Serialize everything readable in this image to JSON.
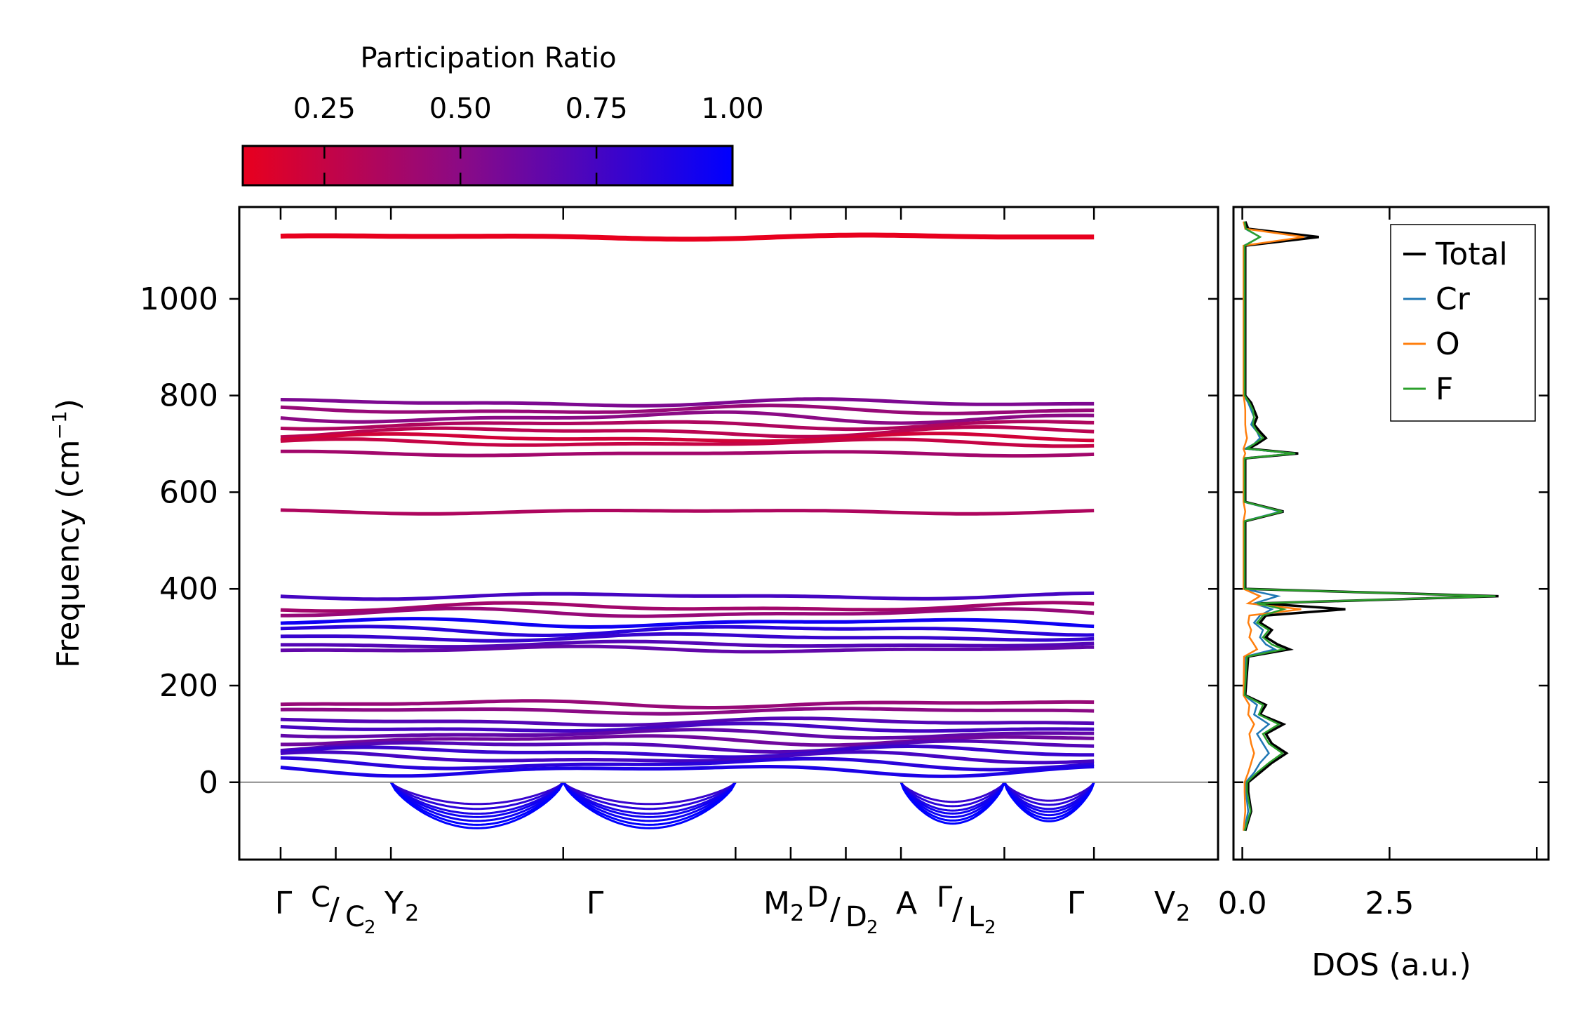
{
  "colors": {
    "low": "#e8001e",
    "mid": "#8a0a86",
    "high": "#0000ff",
    "total": "#000000",
    "cr": "#1f77b4",
    "o": "#ff7f0e",
    "f": "#2ca02c",
    "zero_line": "#888888"
  },
  "colorbar": {
    "label": "Participation Ratio",
    "min": 0.1,
    "max": 1.0,
    "ticks": [
      {
        "value": 0.25,
        "label": "0.25"
      },
      {
        "value": 0.5,
        "label": "0.50"
      },
      {
        "value": 0.75,
        "label": "0.75"
      },
      {
        "value": 1.0,
        "label": "1.00"
      }
    ]
  },
  "chart_data": [
    {
      "type": "line",
      "name": "phonon band structure",
      "ylabel": "Frequency (cm",
      "ylabel_sup": "−1",
      "ylabel_end": ")",
      "ylim": [
        -160,
        1190
      ],
      "yticks": [
        0,
        200,
        400,
        600,
        800,
        1000
      ],
      "xlim": [
        -0.3,
        6.8
      ],
      "kpoints": [
        {
          "x": 0,
          "label": "Γ"
        },
        {
          "x": 0.4,
          "label": "C/C₂"
        },
        {
          "x": 0.8,
          "label": "Y₂"
        },
        {
          "x": 2.05,
          "label": "Γ"
        },
        {
          "x": 3.3,
          "label": "M₂"
        },
        {
          "x": 3.7,
          "label": "D/D₂"
        },
        {
          "x": 4.1,
          "label": "A"
        },
        {
          "x": 4.5,
          "label": "Γ/L₂"
        },
        {
          "x": 5.25,
          "label": "Γ"
        },
        {
          "x": 5.9,
          "label": "V₂"
        }
      ],
      "kpoint_labels": {
        "gamma": "Γ",
        "c": "C",
        "c2": "C",
        "c2_sub": "2",
        "y2": "Y",
        "y2_sub": "2",
        "m2": "M",
        "m2_sub": "2",
        "d": "D",
        "d2": "D",
        "d2_sub": "2",
        "a": "A",
        "l2": "L",
        "l2_sub": "2",
        "v2": "V",
        "v2_sub": "2",
        "slash": "/"
      },
      "bands": [
        {
          "freq": 1128,
          "pr": 0.1,
          "var": 3
        },
        {
          "freq": 785,
          "pr": 0.55,
          "var": 5
        },
        {
          "freq": 770,
          "pr": 0.45,
          "var": 6
        },
        {
          "freq": 755,
          "pr": 0.5,
          "var": 8
        },
        {
          "freq": 740,
          "pr": 0.35,
          "var": 6
        },
        {
          "freq": 725,
          "pr": 0.3,
          "var": 7
        },
        {
          "freq": 712,
          "pr": 0.2,
          "var": 6
        },
        {
          "freq": 702,
          "pr": 0.25,
          "var": 5
        },
        {
          "freq": 680,
          "pr": 0.4,
          "var": 3
        },
        {
          "freq": 560,
          "pr": 0.35,
          "var": 3
        },
        {
          "freq": 385,
          "pr": 0.75,
          "var": 4
        },
        {
          "freq": 362,
          "pr": 0.4,
          "var": 6
        },
        {
          "freq": 350,
          "pr": 0.45,
          "var": 6
        },
        {
          "freq": 330,
          "pr": 0.95,
          "var": 6
        },
        {
          "freq": 315,
          "pr": 0.85,
          "var": 7
        },
        {
          "freq": 300,
          "pr": 0.8,
          "var": 5
        },
        {
          "freq": 285,
          "pr": 0.7,
          "var": 4
        },
        {
          "freq": 275,
          "pr": 0.65,
          "var": 4
        },
        {
          "freq": 162,
          "pr": 0.45,
          "var": 5
        },
        {
          "freq": 148,
          "pr": 0.5,
          "var": 4
        },
        {
          "freq": 125,
          "pr": 0.7,
          "var": 5
        },
        {
          "freq": 112,
          "pr": 0.75,
          "var": 6
        },
        {
          "freq": 100,
          "pr": 0.65,
          "var": 6
        },
        {
          "freq": 88,
          "pr": 0.6,
          "var": 7
        },
        {
          "freq": 75,
          "pr": 0.7,
          "var": 8
        },
        {
          "freq": 62,
          "pr": 0.8,
          "var": 8
        },
        {
          "freq": 50,
          "pr": 0.75,
          "var": 8
        },
        {
          "freq": 38,
          "pr": 0.85,
          "var": 8
        },
        {
          "freq": 25,
          "pr": 0.9,
          "var": 8
        }
      ],
      "soft_modes": [
        {
          "depth": -45,
          "pr": 0.8
        },
        {
          "depth": -55,
          "pr": 0.85
        },
        {
          "depth": -65,
          "pr": 0.9
        },
        {
          "depth": -72,
          "pr": 0.95
        },
        {
          "depth": -80,
          "pr": 0.95
        },
        {
          "depth": -88,
          "pr": 1.0
        },
        {
          "depth": -95,
          "pr": 1.0
        }
      ]
    },
    {
      "type": "line",
      "name": "density of states",
      "xlabel": "DOS (a.u.)",
      "xlim": [
        -0.15,
        5.2
      ],
      "xticks": [
        {
          "value": 0.0,
          "label": "0.0"
        },
        {
          "value": 2.5,
          "label": "2.5"
        }
      ],
      "ylim": [
        -160,
        1190
      ],
      "legend_position": "top-right",
      "freq": [
        -100,
        -60,
        -20,
        0,
        20,
        40,
        60,
        80,
        100,
        120,
        140,
        160,
        180,
        260,
        275,
        285,
        300,
        315,
        330,
        345,
        358,
        370,
        385,
        400,
        540,
        560,
        580,
        670,
        680,
        690,
        700,
        712,
        725,
        740,
        755,
        770,
        785,
        800,
        1110,
        1128,
        1145,
        1160
      ],
      "series": [
        {
          "name": "Total",
          "values": [
            0.05,
            0.15,
            0.1,
            0.1,
            0.3,
            0.5,
            0.75,
            0.5,
            0.4,
            0.7,
            0.3,
            0.4,
            0.05,
            0.1,
            0.8,
            0.6,
            0.4,
            0.5,
            0.3,
            0.4,
            1.75,
            0.3,
            4.35,
            0.05,
            0.05,
            0.7,
            0.05,
            0.05,
            0.95,
            0.1,
            0.25,
            0.4,
            0.3,
            0.2,
            0.25,
            0.2,
            0.15,
            0.05,
            0.05,
            1.3,
            0.1,
            0.05
          ]
        },
        {
          "name": "Cr",
          "values": [
            0.03,
            0.1,
            0.06,
            0.06,
            0.2,
            0.3,
            0.45,
            0.35,
            0.25,
            0.45,
            0.2,
            0.25,
            0.03,
            0.05,
            0.55,
            0.4,
            0.3,
            0.35,
            0.2,
            0.3,
            0.5,
            0.2,
            0.6,
            0.03,
            0.03,
            0.65,
            0.03,
            0.03,
            0.9,
            0.05,
            0.2,
            0.3,
            0.25,
            0.15,
            0.2,
            0.15,
            0.1,
            0.03,
            0.03,
            0.3,
            0.05,
            0.03
          ]
        },
        {
          "name": "O",
          "values": [
            0.02,
            0.05,
            0.04,
            0.04,
            0.1,
            0.15,
            0.2,
            0.15,
            0.12,
            0.2,
            0.1,
            0.12,
            0.02,
            0.03,
            0.25,
            0.2,
            0.12,
            0.15,
            0.1,
            0.12,
            1.0,
            0.1,
            0.3,
            0.02,
            0.02,
            0.05,
            0.02,
            0.02,
            0.05,
            0.02,
            0.05,
            0.08,
            0.06,
            0.05,
            0.05,
            0.05,
            0.04,
            0.02,
            0.02,
            1.05,
            0.05,
            0.02
          ]
        },
        {
          "name": "F",
          "values": [
            0.04,
            0.14,
            0.08,
            0.08,
            0.25,
            0.45,
            0.68,
            0.45,
            0.35,
            0.62,
            0.28,
            0.35,
            0.04,
            0.08,
            0.7,
            0.5,
            0.35,
            0.45,
            0.25,
            0.35,
            0.7,
            0.25,
            4.3,
            0.04,
            0.04,
            0.68,
            0.04,
            0.04,
            0.9,
            0.08,
            0.2,
            0.35,
            0.25,
            0.18,
            0.2,
            0.18,
            0.12,
            0.04,
            0.04,
            0.3,
            0.06,
            0.04
          ]
        }
      ]
    }
  ]
}
